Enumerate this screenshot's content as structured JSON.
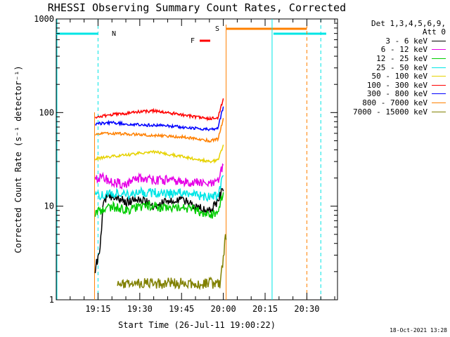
{
  "title": "RHESSI Observing Summary Count Rates, Corrected",
  "footer_date": "18-Oct-2021 13:28",
  "chart_data": {
    "type": "line",
    "title": "RHESSI Observing Summary Count Rates, Corrected",
    "xlabel": "Start Time (26-Jul-11 19:00:22)",
    "ylabel": "Corrected Count Rate (s⁻¹ detector⁻¹)",
    "y_scale": "log",
    "xlim": [
      "19:00",
      "20:41"
    ],
    "ylim": [
      1,
      1000
    ],
    "x_ticks": [
      "19:15",
      "19:30",
      "19:45",
      "20:00",
      "20:15",
      "20:30"
    ],
    "y_ticks": [
      "1",
      "10",
      "100",
      "1000"
    ],
    "legend_header": [
      "Det 1,3,4,5,6,9,",
      "Att 0"
    ],
    "legend_position": "right",
    "series": [
      {
        "name": "3 - 6 keV",
        "color": "#000000",
        "x": [
          "19:14",
          "19:15",
          "19:16",
          "19:17",
          "19:20",
          "19:25",
          "19:30",
          "19:35",
          "19:40",
          "19:45",
          "19:50",
          "19:55",
          "19:58",
          "20:00"
        ],
        "y": [
          2.2,
          2.8,
          4.5,
          12,
          13,
          11,
          12,
          10,
          11,
          12,
          10,
          9,
          11,
          16
        ]
      },
      {
        "name": "6 - 12 keV",
        "color": "#e600e6",
        "x": [
          "19:14",
          "19:17",
          "19:20",
          "19:25",
          "19:30",
          "19:35",
          "19:40",
          "19:45",
          "19:50",
          "19:55",
          "19:58",
          "20:00"
        ],
        "y": [
          20,
          20,
          18,
          17,
          20,
          19,
          19,
          18,
          18,
          17,
          18,
          28
        ]
      },
      {
        "name": "12 - 25 keV",
        "color": "#00cc00",
        "x": [
          "19:14",
          "19:17",
          "19:20",
          "19:25",
          "19:30",
          "19:35",
          "19:40",
          "19:45",
          "19:50",
          "19:55",
          "19:58",
          "20:00"
        ],
        "y": [
          8.5,
          9,
          10,
          9,
          10,
          10,
          9.5,
          10,
          9,
          8,
          8.5,
          14
        ]
      },
      {
        "name": "25 - 50 keV",
        "color": "#00e6e6",
        "x": [
          "19:14",
          "19:17",
          "19:20",
          "19:25",
          "19:30",
          "19:35",
          "19:40",
          "19:45",
          "19:50",
          "19:55",
          "19:58",
          "20:00"
        ],
        "y": [
          13,
          13,
          14,
          13,
          14,
          14,
          13.5,
          14,
          13,
          12.5,
          13,
          22
        ]
      },
      {
        "name": "50 - 100 keV",
        "color": "#e6d200",
        "x": [
          "19:14",
          "19:17",
          "19:20",
          "19:25",
          "19:30",
          "19:35",
          "19:40",
          "19:45",
          "19:50",
          "19:55",
          "19:58",
          "20:00"
        ],
        "y": [
          32,
          33,
          34,
          35,
          37,
          38,
          36,
          34,
          32,
          30,
          31,
          45
        ]
      },
      {
        "name": "100 - 300 keV",
        "color": "#ff0000",
        "x": [
          "19:14",
          "19:17",
          "19:20",
          "19:25",
          "19:30",
          "19:35",
          "19:40",
          "19:45",
          "19:50",
          "19:55",
          "19:58",
          "20:00"
        ],
        "y": [
          90,
          92,
          95,
          98,
          102,
          104,
          100,
          95,
          90,
          86,
          88,
          140
        ]
      },
      {
        "name": "300 - 800 keV",
        "color": "#0000ff",
        "x": [
          "19:14",
          "19:17",
          "19:20",
          "19:25",
          "19:30",
          "19:35",
          "19:40",
          "19:45",
          "19:50",
          "19:55",
          "19:58",
          "20:00"
        ],
        "y": [
          76,
          77,
          78,
          76,
          74,
          73,
          72,
          70,
          68,
          66,
          68,
          115
        ]
      },
      {
        "name": "800 - 7000 keV",
        "color": "#ff8000",
        "x": [
          "19:14",
          "19:17",
          "19:20",
          "19:25",
          "19:30",
          "19:35",
          "19:40",
          "19:45",
          "19:50",
          "19:55",
          "19:58",
          "20:00"
        ],
        "y": [
          59,
          60,
          60,
          59,
          58,
          57,
          56,
          55,
          53,
          50,
          52,
          85
        ]
      },
      {
        "name": "7000 - 15000 keV",
        "color": "#808000",
        "x": [
          "19:22",
          "19:30",
          "19:40",
          "19:50",
          "19:59",
          "20:00",
          "20:01"
        ],
        "y": [
          1.5,
          1.5,
          1.5,
          1.5,
          1.5,
          3,
          5
        ]
      }
    ],
    "annotations": {
      "N": {
        "label": "N",
        "color": "#00e6e6"
      },
      "F": {
        "label": "F",
        "color": "#ff0000"
      },
      "S": {
        "label": "S",
        "color": "#ff8000"
      }
    },
    "grid": false
  }
}
